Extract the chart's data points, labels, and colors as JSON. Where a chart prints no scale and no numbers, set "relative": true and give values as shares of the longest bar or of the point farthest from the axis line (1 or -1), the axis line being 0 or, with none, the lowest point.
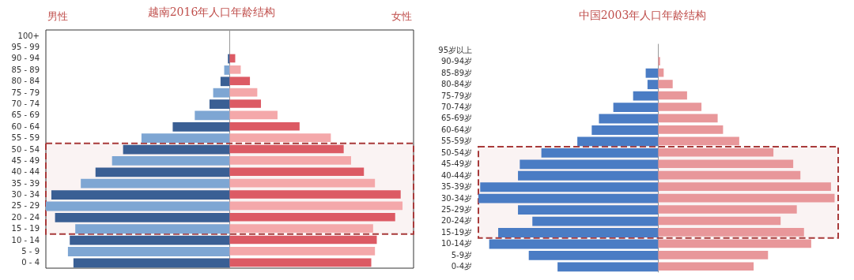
{
  "chart_data": [
    {
      "type": "bar",
      "orientation": "horizontal",
      "relative": true,
      "title": "越南2016年人口年龄结构",
      "annotations": [
        "男性",
        "女性"
      ],
      "categories": [
        "100+",
        "95 - 99",
        "90 - 94",
        "85 - 89",
        "80 - 84",
        "75 - 79",
        "70 - 74",
        "65 - 69",
        "60 - 64",
        "55 - 59",
        "50 - 54",
        "45 - 49",
        "40 - 44",
        "35 - 39",
        "30 - 34",
        "25 - 29",
        "20 - 24",
        "15 - 19",
        "10 - 14",
        "5 - 9",
        "0 - 4"
      ],
      "series": [
        {
          "colors": [
            "#3a5f94",
            "#7ea6d3",
            "#3a5f94",
            "#7ea6d3",
            "#3a5f94",
            "#7ea6d3",
            "#3a5f94",
            "#7ea6d3",
            "#3a5f94",
            "#7ea6d3",
            "#3a5f94",
            "#7ea6d3",
            "#3a5f94",
            "#7ea6d3",
            "#3a5f94",
            "#7ea6d3",
            "#3a5f94",
            "#7ea6d3",
            "#3a5f94",
            "#7ea6d3",
            "#3a5f94"
          ],
          "values": [
            0,
            0,
            -0.01,
            -0.03,
            -0.05,
            -0.09,
            -0.11,
            -0.19,
            -0.31,
            -0.48,
            -0.58,
            -0.64,
            -0.73,
            -0.81,
            -0.97,
            -1,
            -0.95,
            -0.84,
            -0.87,
            -0.88,
            -0.85
          ]
        },
        {
          "colors": [
            "#dc5a64",
            "#f4a8aa",
            "#dc5a64",
            "#f4a8aa",
            "#dc5a64",
            "#f4a8aa",
            "#dc5a64",
            "#f4a8aa",
            "#dc5a64",
            "#f4a8aa",
            "#dc5a64",
            "#f4a8aa",
            "#dc5a64",
            "#f4a8aa",
            "#dc5a64",
            "#f4a8aa",
            "#dc5a64",
            "#f4a8aa",
            "#dc5a64",
            "#f4a8aa",
            "#dc5a64"
          ],
          "values": [
            0,
            0,
            0.03,
            0.06,
            0.11,
            0.15,
            0.17,
            0.26,
            0.38,
            0.55,
            0.62,
            0.66,
            0.73,
            0.79,
            0.93,
            0.94,
            0.9,
            0.78,
            0.8,
            0.79,
            0.77
          ]
        }
      ],
      "bands": [
        {
          "axis": "y",
          "from": "50 - 54",
          "to": "15 - 19",
          "color": "#a83a3a"
        }
      ]
    },
    {
      "type": "bar",
      "orientation": "horizontal",
      "relative": true,
      "title": "中国2003年人口年龄结构",
      "categories": [
        "95岁以上",
        "90-94岁",
        "85-89岁",
        "80-84岁",
        "75-79岁",
        "70-74岁",
        "65-69岁",
        "60-64岁",
        "55-59岁",
        "50-54岁",
        "45-49岁",
        "40-44岁",
        "35-39岁",
        "30-34岁",
        "25-29岁",
        "20-24岁",
        "15-19岁",
        "10-14岁",
        "5-9岁",
        "0-4岁"
      ],
      "series": [
        {
          "color": "#4a7cc4",
          "values": [
            0,
            0,
            -0.07,
            -0.06,
            -0.14,
            -0.25,
            -0.33,
            -0.37,
            -0.45,
            -0.65,
            -0.77,
            -0.78,
            -0.99,
            -1,
            -0.78,
            -0.7,
            -0.89,
            -0.94,
            -0.72,
            -0.56
          ]
        },
        {
          "color": "#e8979a",
          "values": [
            0,
            0.01,
            0.03,
            0.08,
            0.16,
            0.24,
            0.33,
            0.36,
            0.45,
            0.64,
            0.75,
            0.79,
            0.96,
            0.98,
            0.77,
            0.68,
            0.81,
            0.85,
            0.61,
            0.53
          ]
        }
      ],
      "bands": [
        {
          "axis": "y",
          "from": "50-54岁",
          "to": "15-19岁",
          "color": "#a83a3a"
        }
      ]
    }
  ]
}
